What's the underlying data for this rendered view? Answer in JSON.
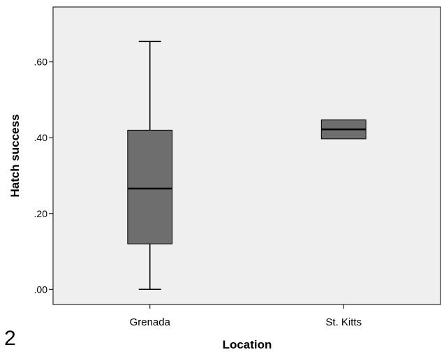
{
  "panel_label": "2",
  "chart_data": {
    "type": "box",
    "xlabel": "Location",
    "ylabel": "Hatch success",
    "categories": [
      "Grenada",
      "St. Kitts"
    ],
    "boxes": [
      {
        "category": "Grenada",
        "min": 0.0,
        "q1": 0.12,
        "median": 0.266,
        "q3": 0.42,
        "max": 0.654
      },
      {
        "category": "St. Kitts",
        "min": 0.397,
        "q1": 0.397,
        "median": 0.422,
        "q3": 0.447,
        "max": 0.447
      }
    ],
    "ylim": [
      -0.04,
      0.745
    ],
    "yticks": [
      0.0,
      0.2,
      0.4,
      0.6
    ],
    "ytick_labels": [
      ".00",
      ".20",
      ".40",
      ".60"
    ],
    "grid": false,
    "colors": {
      "plot_background": "#efefef",
      "box_fill": "#6e6e6e",
      "line": "#000000"
    }
  }
}
